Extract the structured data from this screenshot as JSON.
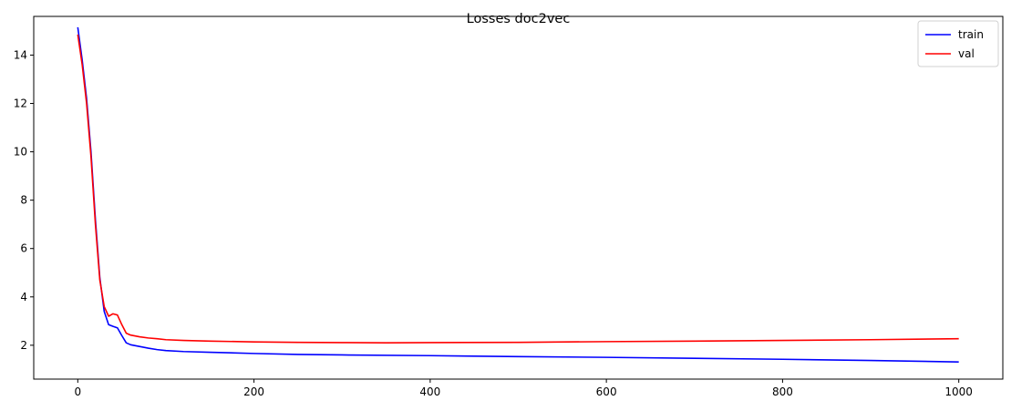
{
  "chart_data": {
    "type": "line",
    "title": "Losses doc2vec",
    "xlabel": "",
    "ylabel": "",
    "xlim": [
      -50,
      1050
    ],
    "ylim": [
      0.6,
      15.6
    ],
    "xticks": [
      0,
      200,
      400,
      600,
      800,
      1000
    ],
    "yticks": [
      2,
      4,
      6,
      8,
      10,
      12,
      14
    ],
    "legend_position": "top-right",
    "series": [
      {
        "name": "train",
        "color": "#0000ff",
        "x": [
          0,
          5,
          10,
          15,
          20,
          25,
          30,
          35,
          40,
          45,
          50,
          55,
          60,
          70,
          80,
          90,
          100,
          120,
          150,
          200,
          250,
          300,
          400,
          500,
          600,
          700,
          800,
          900,
          1000
        ],
        "y": [
          15.15,
          13.8,
          12.2,
          10.0,
          7.2,
          4.8,
          3.4,
          2.85,
          2.78,
          2.72,
          2.4,
          2.1,
          2.02,
          1.95,
          1.88,
          1.82,
          1.78,
          1.74,
          1.71,
          1.66,
          1.62,
          1.6,
          1.57,
          1.53,
          1.5,
          1.46,
          1.42,
          1.37,
          1.31
        ]
      },
      {
        "name": "val",
        "color": "#ff0000",
        "x": [
          0,
          5,
          10,
          15,
          20,
          25,
          30,
          35,
          40,
          45,
          50,
          55,
          60,
          70,
          80,
          90,
          100,
          120,
          150,
          200,
          250,
          300,
          350,
          400,
          500,
          600,
          700,
          800,
          900,
          1000
        ],
        "y": [
          14.85,
          13.6,
          12.0,
          9.8,
          7.0,
          4.7,
          3.6,
          3.2,
          3.3,
          3.25,
          2.85,
          2.5,
          2.42,
          2.35,
          2.3,
          2.27,
          2.23,
          2.2,
          2.17,
          2.14,
          2.12,
          2.11,
          2.1,
          2.11,
          2.12,
          2.15,
          2.17,
          2.2,
          2.23,
          2.27
        ]
      }
    ]
  }
}
